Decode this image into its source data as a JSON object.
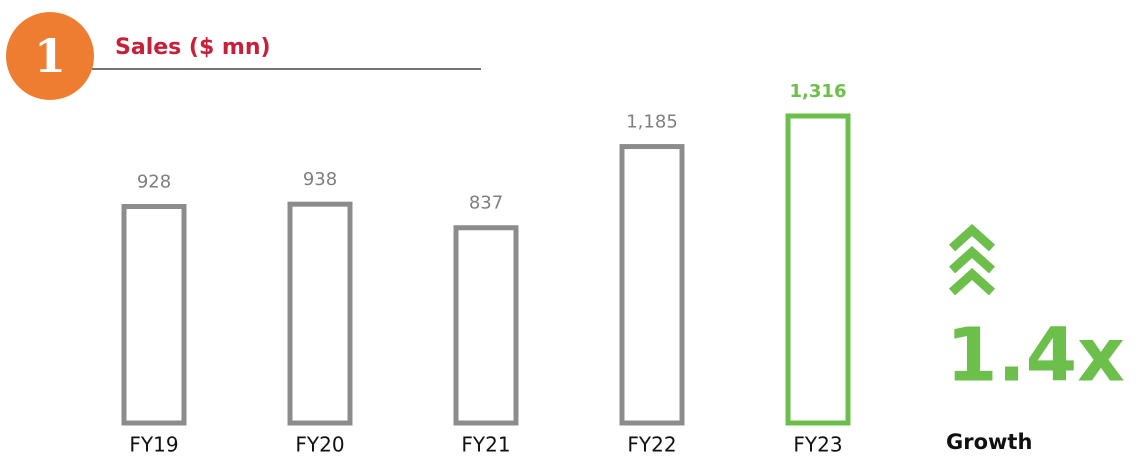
{
  "chart_data": {
    "type": "bar",
    "badge": "1",
    "title": "Sales ($ mn)",
    "categories": [
      "FY19",
      "FY20",
      "FY21",
      "FY22",
      "FY23"
    ],
    "values": [
      928,
      938,
      837,
      1185,
      1316
    ],
    "value_labels": [
      "928",
      "938",
      "837",
      "1,185",
      "1,316"
    ],
    "colors": [
      "#8c8c8c",
      "#8c8c8c",
      "#8c8c8c",
      "#8c8c8c",
      "#6dbf4b"
    ],
    "growth_value": "1.4x",
    "growth_label": "Growth"
  }
}
